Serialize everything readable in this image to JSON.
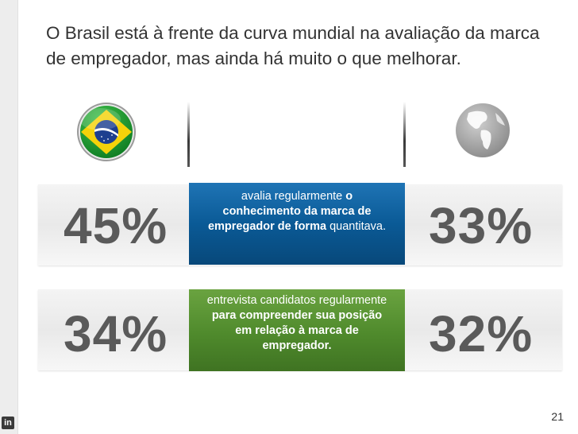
{
  "title": "O Brasil está à frente da curva mundial na avaliação da marca de empregador, mas ainda há muito o que melhorar.",
  "icons": {
    "left": "brazil-flag-icon",
    "right": "globe-icon",
    "corner": "linkedin-icon"
  },
  "corner_icon_text": "in",
  "rows": [
    {
      "brazil_value": "45%",
      "world_value": "33%",
      "text_normal": "avalia regularmente ",
      "text_bold": "o conhecimento da marca de empregador de forma",
      "text_tail": " quantitava.",
      "color": "#0a5a96"
    },
    {
      "brazil_value": "34%",
      "world_value": "32%",
      "text_normal": "entrevista candidatos regularmente ",
      "text_bold": "para compreender sua posição em relação à marca de empregador.",
      "text_tail": "",
      "color": "#4f8a2c"
    }
  ],
  "page_number": "21",
  "colors": {
    "value_text": "#5a5a5a",
    "title_text": "#333333"
  }
}
